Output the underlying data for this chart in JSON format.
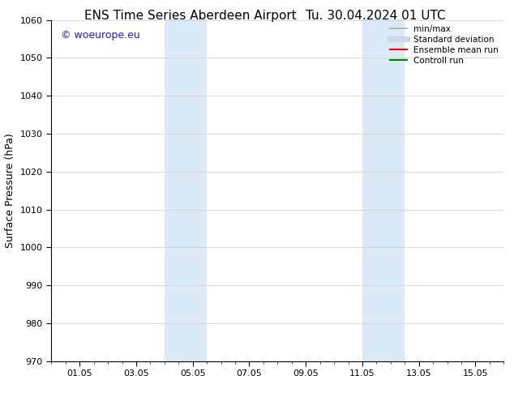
{
  "title_left": "ENS Time Series Aberdeen Airport",
  "title_right": "Tu. 30.04.2024 01 UTC",
  "ylabel": "Surface Pressure (hPa)",
  "ylim": [
    970,
    1060
  ],
  "yticks": [
    970,
    980,
    990,
    1000,
    1010,
    1020,
    1030,
    1040,
    1050,
    1060
  ],
  "xlim": [
    0,
    16
  ],
  "xtick_labels": [
    "01.05",
    "03.05",
    "05.05",
    "07.05",
    "09.05",
    "11.05",
    "13.05",
    "15.05"
  ],
  "xtick_positions": [
    1,
    3,
    5,
    7,
    9,
    11,
    13,
    15
  ],
  "shaded_bands": [
    {
      "x_start": 4.0,
      "x_end": 5.5
    },
    {
      "x_start": 11.0,
      "x_end": 12.5
    }
  ],
  "shaded_color": "#daeaf7",
  "background_color": "#ffffff",
  "watermark_text": "© woeurope.eu",
  "watermark_color": "#1a1aff",
  "legend_items": [
    {
      "label": "min/max",
      "color": "#aaaaaa",
      "lw": 1.2,
      "ls": "-"
    },
    {
      "label": "Standard deviation",
      "color": "#c8daea",
      "lw": 5,
      "ls": "-"
    },
    {
      "label": "Ensemble mean run",
      "color": "#ff0000",
      "lw": 1.5,
      "ls": "-"
    },
    {
      "label": "Controll run",
      "color": "#008000",
      "lw": 1.5,
      "ls": "-"
    }
  ],
  "grid_color": "#cccccc",
  "grid_lw": 0.5,
  "title_fontsize": 11,
  "tick_fontsize": 8,
  "legend_fontsize": 7.5,
  "ylabel_fontsize": 9,
  "watermark_fontsize": 9
}
